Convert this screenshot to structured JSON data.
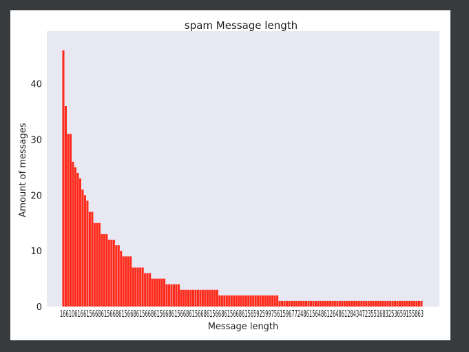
{
  "chart_data": {
    "type": "bar",
    "title": "spam Message length",
    "xlabel": "Message length",
    "ylabel": "Amount of messages",
    "ylim": [
      0,
      48
    ],
    "yticks": [
      0,
      10,
      20,
      30,
      40
    ],
    "grid": false,
    "bar_color": "#ff2a1a",
    "plot_background": "#e8e8f2",
    "values": [
      46,
      36,
      31,
      31,
      26,
      25,
      24,
      23,
      21,
      20,
      19,
      17,
      17,
      15,
      15,
      15,
      13,
      13,
      13,
      12,
      12,
      12,
      11,
      11,
      10,
      9,
      9,
      9,
      9,
      7,
      7,
      7,
      7,
      7,
      6,
      6,
      6,
      5,
      5,
      5,
      5,
      5,
      5,
      4,
      4,
      4,
      4,
      4,
      4,
      3,
      3,
      3,
      3,
      3,
      3,
      3,
      3,
      3,
      3,
      3,
      3,
      3,
      3,
      3,
      3,
      2,
      2,
      2,
      2,
      2,
      2,
      2,
      2,
      2,
      2,
      2,
      2,
      2,
      2,
      2,
      2,
      2,
      2,
      2,
      2,
      2,
      2,
      2,
      2,
      2,
      1,
      1,
      1,
      1,
      1,
      1,
      1,
      1,
      1,
      1,
      1,
      1,
      1,
      1,
      1,
      1,
      1,
      1,
      1,
      1,
      1,
      1,
      1,
      1,
      1,
      1,
      1,
      1,
      1,
      1,
      1,
      1,
      1,
      1,
      1,
      1,
      1,
      1,
      1,
      1,
      1,
      1,
      1,
      1,
      1,
      1,
      1,
      1,
      1,
      1,
      1,
      1,
      1,
      1,
      1,
      1,
      1,
      1,
      1,
      1
    ],
    "x_tick_text": "1661061661566861566861566861566861566861566861566861566861566861565925997561596772486156486126486128434723551683253659155863"
  }
}
